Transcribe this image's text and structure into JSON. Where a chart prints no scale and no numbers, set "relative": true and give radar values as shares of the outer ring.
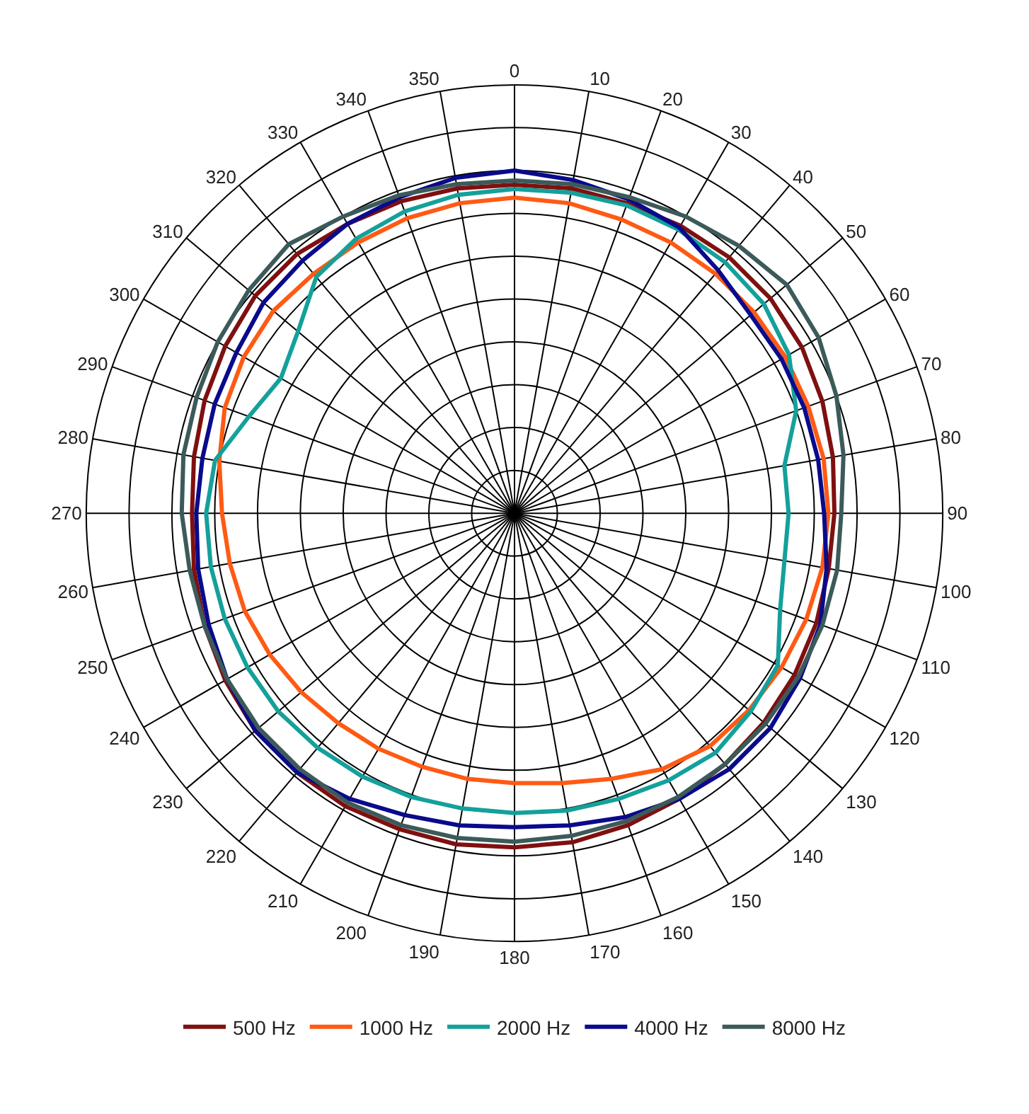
{
  "chart_data": {
    "type": "radar",
    "relative": true,
    "grid": true,
    "legend": "bottom",
    "marker": "none",
    "line_style": "solid",
    "categories": [
      "0",
      "10",
      "20",
      "30",
      "40",
      "50",
      "60",
      "70",
      "80",
      "90",
      "100",
      "110",
      "120",
      "130",
      "140",
      "150",
      "160",
      "170",
      "180",
      "190",
      "200",
      "210",
      "220",
      "230",
      "240",
      "250",
      "260",
      "270",
      "280",
      "290",
      "300",
      "310",
      "320",
      "330",
      "340",
      "350"
    ],
    "series": [
      {
        "name": "500 Hz",
        "color": "#7f1010",
        "values": [
          0.767,
          0.77,
          0.77,
          0.775,
          0.78,
          0.78,
          0.775,
          0.765,
          0.755,
          0.747,
          0.745,
          0.75,
          0.755,
          0.76,
          0.765,
          0.77,
          0.775,
          0.78,
          0.78,
          0.785,
          0.785,
          0.79,
          0.79,
          0.79,
          0.78,
          0.77,
          0.76,
          0.753,
          0.76,
          0.77,
          0.78,
          0.79,
          0.79,
          0.78,
          0.775,
          0.77
        ]
      },
      {
        "name": "1000 Hz",
        "color": "#ff5a14",
        "values": [
          0.737,
          0.735,
          0.73,
          0.73,
          0.73,
          0.73,
          0.73,
          0.73,
          0.733,
          0.733,
          0.73,
          0.725,
          0.72,
          0.715,
          0.71,
          0.69,
          0.66,
          0.64,
          0.63,
          0.63,
          0.63,
          0.635,
          0.64,
          0.65,
          0.66,
          0.67,
          0.675,
          0.683,
          0.7,
          0.72,
          0.73,
          0.735,
          0.73,
          0.73,
          0.733,
          0.735
        ]
      },
      {
        "name": "2000 Hz",
        "color": "#14a09b",
        "values": [
          0.757,
          0.76,
          0.765,
          0.765,
          0.765,
          0.76,
          0.74,
          0.7,
          0.64,
          0.64,
          0.64,
          0.66,
          0.71,
          0.72,
          0.73,
          0.72,
          0.71,
          0.705,
          0.7,
          0.7,
          0.705,
          0.71,
          0.715,
          0.72,
          0.72,
          0.72,
          0.72,
          0.72,
          0.71,
          0.66,
          0.63,
          0.66,
          0.72,
          0.74,
          0.75,
          0.755
        ]
      },
      {
        "name": "4000 Hz",
        "color": "#0a0a8c",
        "values": [
          0.8,
          0.79,
          0.78,
          0.77,
          0.74,
          0.72,
          0.72,
          0.72,
          0.72,
          0.723,
          0.74,
          0.76,
          0.77,
          0.78,
          0.78,
          0.77,
          0.755,
          0.74,
          0.733,
          0.74,
          0.75,
          0.77,
          0.79,
          0.79,
          0.775,
          0.76,
          0.75,
          0.743,
          0.74,
          0.745,
          0.75,
          0.765,
          0.77,
          0.78,
          0.785,
          0.795
        ]
      },
      {
        "name": "8000 Hz",
        "color": "#3c5a5a",
        "values": [
          0.777,
          0.78,
          0.785,
          0.8,
          0.815,
          0.83,
          0.82,
          0.8,
          0.78,
          0.763,
          0.765,
          0.765,
          0.765,
          0.765,
          0.765,
          0.765,
          0.765,
          0.765,
          0.767,
          0.77,
          0.775,
          0.78,
          0.78,
          0.78,
          0.775,
          0.77,
          0.77,
          0.777,
          0.785,
          0.79,
          0.8,
          0.81,
          0.82,
          0.8,
          0.79,
          0.78
        ]
      }
    ]
  }
}
